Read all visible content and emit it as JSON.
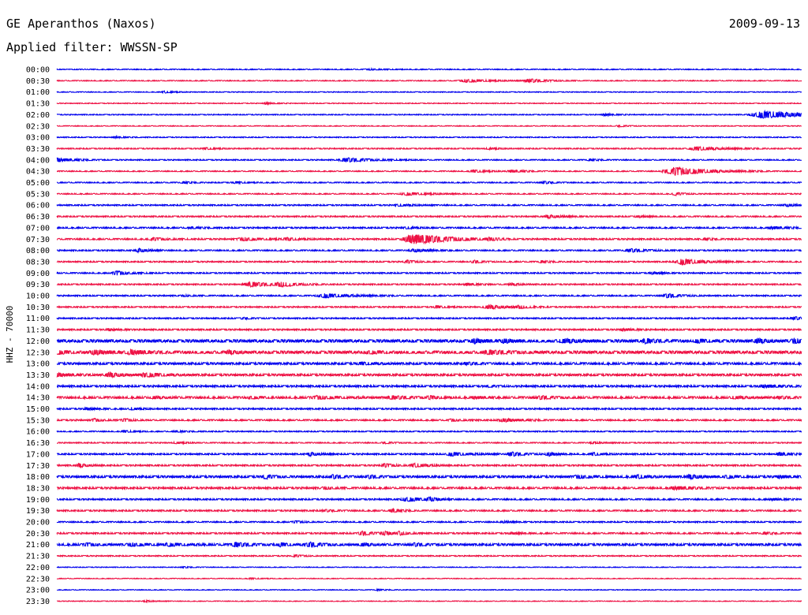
{
  "header": {
    "station": "GE Aperanthos (Naxos)",
    "date": "2009-09-13",
    "filter": "Applied filter: WWSSN-SP"
  },
  "chart_data": {
    "type": "line",
    "title": "GE Aperanthos (Naxos)",
    "subtitle": "Applied filter: WWSSN-SP",
    "ylabel": "HHZ - 70000",
    "xlabel": "",
    "grid": false,
    "legend": "none",
    "colors": [
      "#0000ee",
      "#ee1144"
    ],
    "row_labels": [
      "00:00",
      "00:30",
      "01:00",
      "01:30",
      "02:00",
      "02:30",
      "03:00",
      "03:30",
      "04:00",
      "04:30",
      "05:00",
      "05:30",
      "06:00",
      "06:30",
      "07:00",
      "07:30",
      "08:00",
      "08:30",
      "09:00",
      "09:30",
      "10:00",
      "10:30",
      "11:00",
      "11:30",
      "12:00",
      "12:30",
      "13:00",
      "13:30",
      "14:00",
      "14:30",
      "15:00",
      "15:30",
      "16:00",
      "16:30",
      "17:00",
      "17:30",
      "18:00",
      "18:30",
      "19:00",
      "19:30",
      "20:00",
      "20:30",
      "21:00",
      "21:30",
      "22:00",
      "22:30",
      "23:00",
      "23:30"
    ],
    "noise": [
      0.25,
      0.25,
      0.22,
      0.22,
      0.25,
      0.22,
      0.25,
      0.3,
      0.3,
      0.28,
      0.3,
      0.3,
      0.35,
      0.35,
      0.4,
      0.4,
      0.35,
      0.35,
      0.35,
      0.35,
      0.35,
      0.35,
      0.35,
      0.4,
      0.8,
      0.8,
      0.6,
      0.6,
      0.5,
      0.6,
      0.4,
      0.4,
      0.3,
      0.3,
      0.4,
      0.4,
      0.6,
      0.5,
      0.4,
      0.4,
      0.35,
      0.4,
      0.6,
      0.3,
      0.2,
      0.2,
      0.2,
      0.2
    ],
    "events": [
      [
        [
          0.42,
          0.4,
          3
        ]
      ],
      [
        [
          0.55,
          1.2,
          5
        ],
        [
          0.635,
          1.4,
          4
        ]
      ],
      [
        [
          0.145,
          0.8,
          2
        ]
      ],
      [
        [
          0.28,
          0.6,
          2
        ]
      ],
      [
        [
          0.95,
          2.8,
          10
        ],
        [
          0.735,
          0.8,
          2
        ]
      ],
      [
        [
          0.755,
          0.6,
          2
        ]
      ],
      [
        [
          0.08,
          0.5,
          2
        ]
      ],
      [
        [
          0.2,
          0.8,
          2
        ],
        [
          0.86,
          1.4,
          6
        ],
        [
          0.58,
          0.6,
          2
        ]
      ],
      [
        [
          0.0,
          1.5,
          4
        ],
        [
          0.39,
          1.5,
          6
        ],
        [
          0.715,
          0.6,
          2
        ]
      ],
      [
        [
          0.83,
          3,
          8
        ],
        [
          0.56,
          1,
          3
        ],
        [
          0.61,
          1,
          3
        ]
      ],
      [
        [
          0.17,
          0.6,
          2
        ],
        [
          0.24,
          0.6,
          2
        ],
        [
          0.655,
          0.8,
          2
        ]
      ],
      [
        [
          0.47,
          1,
          5
        ],
        [
          0.83,
          1.2,
          2
        ]
      ],
      [
        [
          0.98,
          1,
          2
        ],
        [
          0.46,
          0.8,
          3
        ]
      ],
      [
        [
          0.66,
          1.2,
          3
        ],
        [
          0.78,
          0.7,
          2
        ]
      ],
      [
        [
          0.18,
          0.6,
          2
        ],
        [
          0.47,
          0.7,
          2
        ],
        [
          0.96,
          1,
          3
        ]
      ],
      [
        [
          0.48,
          4,
          8
        ],
        [
          0.13,
          1,
          3
        ],
        [
          0.25,
          1.2,
          4
        ],
        [
          0.31,
          1,
          3
        ],
        [
          0.58,
          0.8,
          2
        ],
        [
          0.87,
          0.7,
          2
        ]
      ],
      [
        [
          0.11,
          1.5,
          2
        ],
        [
          0.48,
          1.2,
          3
        ],
        [
          0.77,
          1.2,
          4
        ]
      ],
      [
        [
          0.84,
          2.2,
          5
        ],
        [
          0.56,
          1,
          2
        ],
        [
          0.65,
          0.7,
          2
        ],
        [
          0.47,
          1.2,
          2
        ]
      ],
      [
        [
          0.08,
          1.5,
          3
        ],
        [
          0.8,
          0.8,
          2
        ]
      ],
      [
        [
          0.26,
          1.8,
          5
        ],
        [
          0.3,
          1.5,
          4
        ],
        [
          0.55,
          1,
          2
        ],
        [
          0.61,
          0.8,
          2
        ]
      ],
      [
        [
          0.36,
          1.5,
          6
        ],
        [
          0.82,
          1.5,
          3
        ],
        [
          0.17,
          0.5,
          2
        ]
      ],
      [
        [
          0.51,
          1,
          2
        ],
        [
          0.58,
          1.4,
          5
        ],
        [
          0.62,
          1,
          2
        ]
      ],
      [
        [
          0.99,
          1.2,
          2
        ],
        [
          0.25,
          0.5,
          2
        ]
      ],
      [
        [
          0.07,
          0.8,
          2
        ],
        [
          0.76,
          1,
          2
        ]
      ],
      [
        [
          0.56,
          1.5,
          2
        ],
        [
          0.6,
          1.2,
          2
        ],
        [
          0.68,
          1.2,
          3
        ],
        [
          0.79,
          1.5,
          2
        ],
        [
          0.86,
          1,
          2
        ],
        [
          0.94,
          1.4,
          2
        ],
        [
          0.99,
          1.5,
          2
        ]
      ],
      [
        [
          0.0,
          1.2,
          2
        ],
        [
          0.05,
          1.4,
          3
        ],
        [
          0.1,
          1.5,
          3
        ],
        [
          0.23,
          1,
          2
        ],
        [
          0.42,
          0.8,
          2
        ],
        [
          0.58,
          1.2,
          4
        ]
      ],
      [
        [
          0.41,
          0.8,
          3
        ],
        [
          0.55,
          0.8,
          2
        ]
      ],
      [
        [
          0.0,
          1.2,
          3
        ],
        [
          0.07,
          1.5,
          3
        ],
        [
          0.12,
          1.4,
          4
        ]
      ],
      [
        [
          0.95,
          1,
          4
        ],
        [
          0.58,
          0.5,
          2
        ]
      ],
      [
        [
          0.13,
          0.8,
          2
        ],
        [
          0.26,
          0.8,
          2
        ],
        [
          0.35,
          1,
          4
        ],
        [
          0.45,
          1,
          4
        ],
        [
          0.5,
          1,
          2
        ],
        [
          0.56,
          0.8,
          2
        ],
        [
          0.65,
          1,
          3
        ],
        [
          0.91,
          0.8,
          3
        ],
        [
          0.97,
          0.8,
          2
        ]
      ],
      [
        [
          0.04,
          0.8,
          2
        ],
        [
          0.1,
          0.8,
          2
        ]
      ],
      [
        [
          0.05,
          1,
          2
        ],
        [
          0.09,
          1,
          2
        ],
        [
          0.53,
          0.8,
          2
        ],
        [
          0.6,
          1.2,
          4
        ]
      ],
      [
        [
          0.09,
          0.8,
          2
        ],
        [
          0.16,
          0.5,
          2
        ]
      ],
      [
        [
          0.16,
          0.7,
          2
        ],
        [
          0.44,
          0.6,
          2
        ],
        [
          0.72,
          0.6,
          2
        ]
      ],
      [
        [
          0.34,
          1.4,
          2
        ],
        [
          0.53,
          1.3,
          4
        ],
        [
          0.61,
          1.5,
          3
        ],
        [
          0.66,
          1.4,
          2
        ],
        [
          0.72,
          1.2,
          2
        ],
        [
          0.97,
          1.4,
          2
        ]
      ],
      [
        [
          0.03,
          1.4,
          2
        ],
        [
          0.44,
          1.4,
          2
        ],
        [
          0.48,
          1.5,
          3
        ]
      ],
      [
        [
          0.28,
          1.4,
          2
        ],
        [
          0.37,
          1.2,
          2
        ],
        [
          0.42,
          1,
          2
        ],
        [
          0.7,
          1,
          3
        ],
        [
          0.78,
          1.4,
          2
        ],
        [
          0.85,
          1.3,
          3
        ],
        [
          0.9,
          1,
          2
        ],
        [
          0.97,
          1,
          2
        ]
      ],
      [
        [
          0.36,
          0.8,
          2
        ],
        [
          0.83,
          1.2,
          4
        ]
      ],
      [
        [
          0.47,
          1.5,
          4
        ],
        [
          0.5,
          1.2,
          2
        ],
        [
          0.96,
          0.8,
          2
        ]
      ],
      [
        [
          0.36,
          0.7,
          2
        ],
        [
          0.45,
          1.4,
          2
        ]
      ],
      [
        [
          0.32,
          0.8,
          2
        ],
        [
          0.6,
          0.5,
          2
        ]
      ],
      [
        [
          0.41,
          1.4,
          3
        ],
        [
          0.44,
          1.2,
          2
        ],
        [
          0.46,
          1.3,
          2
        ],
        [
          0.61,
          0.6,
          2
        ],
        [
          0.95,
          0.8,
          2
        ]
      ],
      [
        [
          0.04,
          1,
          2
        ],
        [
          0.1,
          1,
          3
        ],
        [
          0.15,
          1,
          3
        ],
        [
          0.24,
          1.5,
          3
        ],
        [
          0.3,
          1.2,
          2
        ],
        [
          0.34,
          1.5,
          3
        ],
        [
          0.41,
          1,
          2
        ],
        [
          0.48,
          1,
          2
        ]
      ],
      [
        [
          0.32,
          0.8,
          2
        ]
      ],
      [
        [
          0.17,
          0.4,
          2
        ]
      ],
      [
        [
          0.26,
          0.4,
          2
        ]
      ],
      [
        [
          0.43,
          0.4,
          2
        ]
      ],
      [
        [
          0.12,
          0.6,
          2
        ]
      ]
    ]
  }
}
